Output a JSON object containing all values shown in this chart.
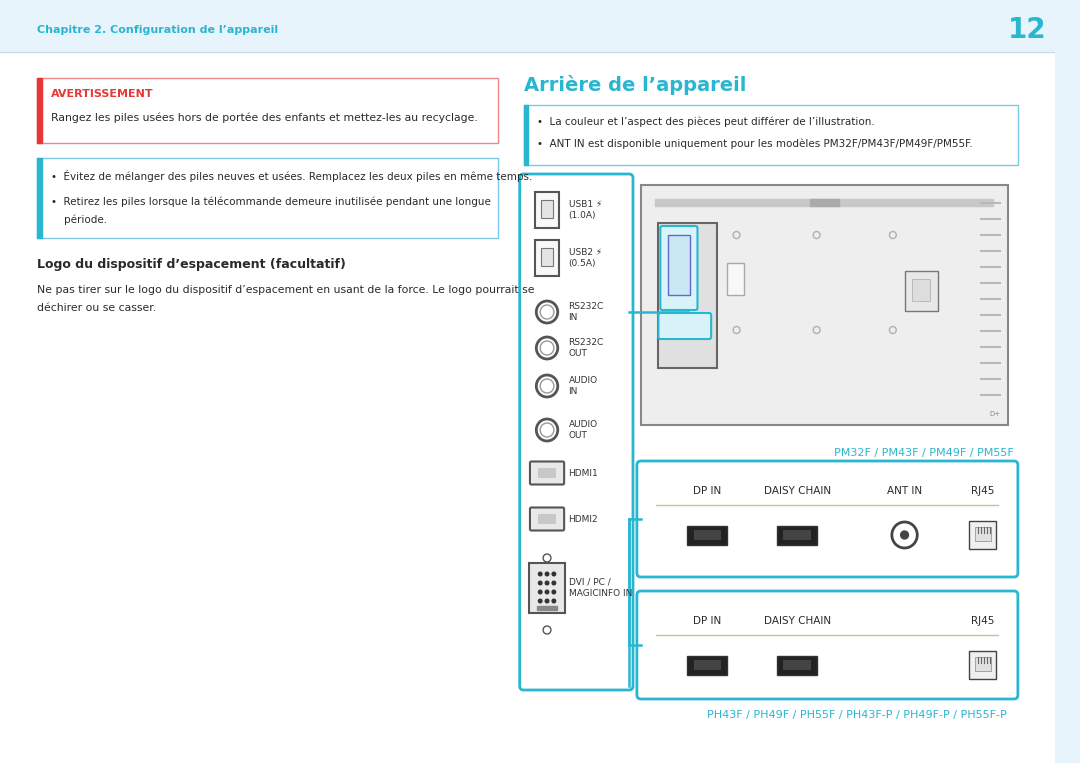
{
  "bg_color": "#e8f4fb",
  "content_bg": "#ffffff",
  "cyan_color": "#29b6d0",
  "red_color": "#e53935",
  "dark_text": "#2a2a2a",
  "gray_text": "#666666",
  "page_num": "12",
  "chapter_text": "Chapitre 2. Configuration de l’appareil",
  "warning_title": "AVERTISSEMENT",
  "warning_text": "Rangez les piles usées hors de portée des enfants et mettez-les au recyclage.",
  "note1_bullet1": "•  Évitez de mélanger des piles neuves et usées. Remplacez les deux piles en même temps.",
  "note1_bullet2_line1": "•  Retirez les piles lorsque la télécommande demeure inutilisée pendant une longue",
  "note1_bullet2_line2": "    période.",
  "section_title": "Logo du dispositif d’espacement (facultatif)",
  "section_text_line1": "Ne pas tirer sur le logo du dispositif d’espacement en usant de la force. Le logo pourrait se",
  "section_text_line2": "déchirer ou se casser.",
  "right_title": "Arrière de l’appareil",
  "note2_bullet1": "•  La couleur et l’aspect des pièces peut différer de l’illustration.",
  "note2_bullet2": "•  ANT IN est disponible uniquement pour les modèles PM32F/PM43F/PM49F/PM55F.",
  "pm_label": "PM32F / PM43F / PM49F / PM55F",
  "ph_label": "PH43F / PH49F / PH55F / PH43F-P / PH49F-P / PH55F-P",
  "usb1_label": "USB1    \n(1.0A)",
  "usb2_label": "USB2    \n(0.5A)",
  "rs232c_in": "RS232C\nIN",
  "rs232c_out": "RS232C\nOUT",
  "audio_in": "AUDIO\nIN",
  "audio_out": "AUDIO\nOUT",
  "hdmi1": "HDMI1",
  "hdmi2": "HDMI2",
  "dvi_label": "DVI / PC /\nMAGICINFO IN"
}
